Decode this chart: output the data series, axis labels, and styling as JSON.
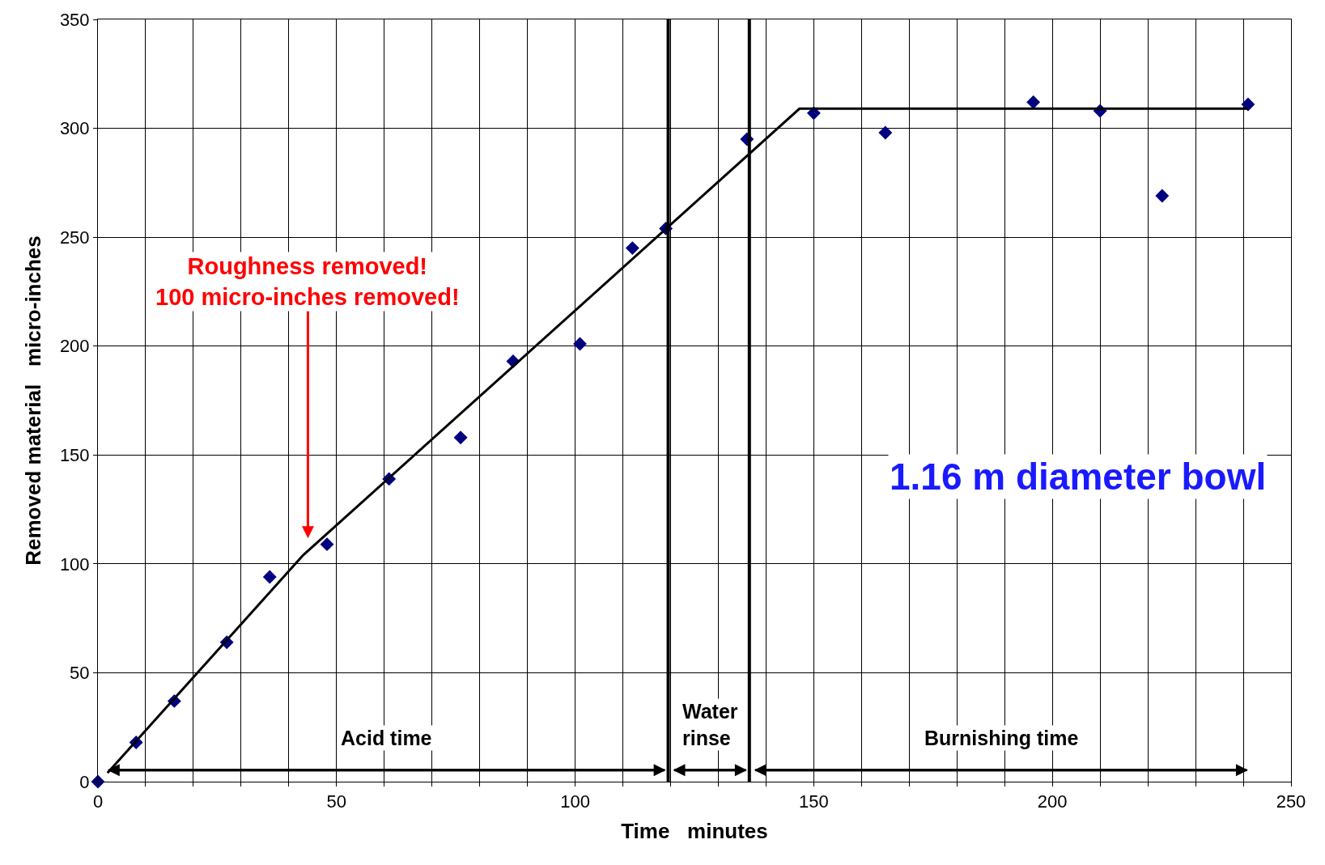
{
  "chart_data": {
    "type": "scatter",
    "xlabel": "Time   minutes",
    "ylabel": "Removed material   micro-inches",
    "x": [
      0,
      8,
      16,
      27,
      36,
      48,
      61,
      76,
      87,
      101,
      112,
      119,
      136,
      150,
      165,
      196,
      210,
      223,
      241
    ],
    "series": [
      {
        "color": "#000080",
        "values": [
          0,
          18,
          37,
          64,
          94,
          109,
          139,
          158,
          193,
          201,
          245,
          254,
          295,
          307,
          298,
          312,
          308,
          269,
          311
        ]
      },
      {
        "type": "line",
        "color": "#000000",
        "marker": "none",
        "x": [
          2,
          43,
          147,
          241
        ],
        "values": [
          4,
          104,
          309,
          309
        ]
      }
    ],
    "marker": "diamond",
    "line_style": "solid",
    "grid": true,
    "legend": false,
    "xlim": [
      0,
      250
    ],
    "ylim": [
      0,
      350
    ],
    "xticks": [
      0,
      {
        "value": 10,
        "label": null
      },
      {
        "value": 20,
        "label": null
      },
      {
        "value": 30,
        "label": null
      },
      {
        "value": 40,
        "label": null
      },
      50,
      {
        "value": 60,
        "label": null
      },
      {
        "value": 70,
        "label": null
      },
      {
        "value": 80,
        "label": null
      },
      {
        "value": 90,
        "label": null
      },
      100,
      {
        "value": 110,
        "label": null
      },
      {
        "value": 120,
        "label": null
      },
      {
        "value": 130,
        "label": null
      },
      {
        "value": 140,
        "label": null
      },
      150,
      {
        "value": 160,
        "label": null
      },
      {
        "value": 170,
        "label": null
      },
      {
        "value": 180,
        "label": null
      },
      {
        "value": 190,
        "label": null
      },
      200,
      {
        "value": 210,
        "label": null
      },
      {
        "value": 220,
        "label": null
      },
      {
        "value": 230,
        "label": null
      },
      {
        "value": 240,
        "label": null
      },
      250
    ],
    "yticks": [
      0,
      50,
      100,
      150,
      200,
      250,
      300,
      350
    ],
    "ref_lines": [
      {
        "axis": "x",
        "value": 119.5,
        "color": "#000000"
      },
      {
        "axis": "x",
        "value": 136.5,
        "color": "#000000"
      }
    ],
    "annotations": [
      "Acid time",
      "Water\nrinse",
      "Burnishing time",
      "Roughness removed!\n100 micro-inches removed!",
      "1.16 m diameter bowl"
    ]
  }
}
